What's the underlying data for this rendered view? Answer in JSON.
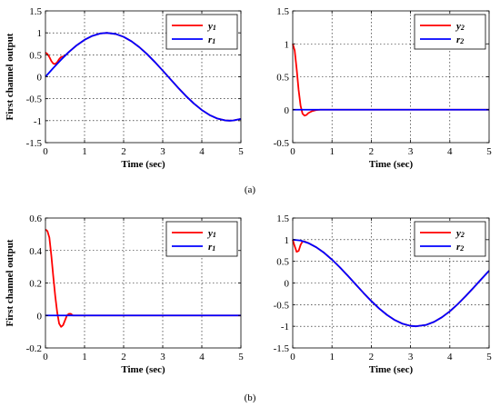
{
  "captions": [
    "(a)",
    "(b)"
  ],
  "colors": {
    "y": "#ff0000",
    "r": "#0000ff",
    "grid": "#000000",
    "axis": "#000000"
  },
  "chart_data": [
    {
      "type": "line",
      "xlabel": "Time (sec)",
      "ylabel": "First channel output",
      "xlim": [
        0,
        5
      ],
      "ylim": [
        -1.5,
        1.5
      ],
      "xticks": [
        "0",
        "1",
        "2",
        "3",
        "4",
        "5"
      ],
      "yticks": [
        "-1.5",
        "-1",
        "-0.5",
        "0",
        "0.5",
        "1",
        "1.5"
      ],
      "grid": true,
      "legend_position": "top-right",
      "series": [
        {
          "name": "y1",
          "label_base": "y",
          "label_sub": "1",
          "color": "#ff0000",
          "x": [
            0,
            0.05,
            0.1,
            0.15,
            0.2,
            0.25,
            0.3,
            0.35,
            0.4,
            0.45,
            0.5,
            0.6,
            0.8,
            1.0,
            1.2,
            1.4,
            1.571,
            1.8,
            2.0,
            2.2,
            2.4,
            2.6,
            2.8,
            3.0,
            3.2,
            3.4,
            3.6,
            3.8,
            4.0,
            4.2,
            4.4,
            4.6,
            4.712,
            4.8,
            5.0
          ],
          "y": [
            0.55,
            0.52,
            0.45,
            0.36,
            0.3,
            0.29,
            0.33,
            0.4,
            0.45,
            0.46,
            0.48,
            0.565,
            0.717,
            0.841,
            0.932,
            0.985,
            1.0,
            0.974,
            0.909,
            0.808,
            0.675,
            0.516,
            0.335,
            0.141,
            -0.058,
            -0.256,
            -0.443,
            -0.612,
            -0.757,
            -0.872,
            -0.952,
            -0.994,
            -1.0,
            -0.996,
            -0.959
          ]
        },
        {
          "name": "r1",
          "label_base": "r",
          "label_sub": "1",
          "color": "#0000ff",
          "x": [
            0,
            0.2,
            0.4,
            0.6,
            0.8,
            1.0,
            1.2,
            1.4,
            1.571,
            1.8,
            2.0,
            2.2,
            2.4,
            2.6,
            2.8,
            3.0,
            3.2,
            3.4,
            3.6,
            3.8,
            4.0,
            4.2,
            4.4,
            4.6,
            4.712,
            4.8,
            5.0
          ],
          "y": [
            0,
            0.199,
            0.389,
            0.565,
            0.717,
            0.841,
            0.932,
            0.985,
            1.0,
            0.974,
            0.909,
            0.808,
            0.675,
            0.516,
            0.335,
            0.141,
            -0.058,
            -0.256,
            -0.443,
            -0.612,
            -0.757,
            -0.872,
            -0.952,
            -0.994,
            -1.0,
            -0.996,
            -0.959
          ]
        }
      ]
    },
    {
      "type": "line",
      "xlabel": "Time (sec)",
      "ylabel": "",
      "xlim": [
        0,
        5
      ],
      "ylim": [
        -0.5,
        1.5
      ],
      "xticks": [
        "0",
        "1",
        "2",
        "3",
        "4",
        "5"
      ],
      "yticks": [
        "-0.5",
        "0",
        "0.5",
        "1",
        "1.5"
      ],
      "grid": true,
      "legend_position": "top-right",
      "series": [
        {
          "name": "y2",
          "label_base": "y",
          "label_sub": "2",
          "color": "#ff0000",
          "x": [
            0,
            0.05,
            0.1,
            0.15,
            0.2,
            0.25,
            0.3,
            0.35,
            0.4,
            0.5,
            0.6,
            0.7,
            0.8,
            5.0
          ],
          "y": [
            1.0,
            0.9,
            0.62,
            0.3,
            0.06,
            -0.06,
            -0.09,
            -0.08,
            -0.05,
            -0.02,
            -0.005,
            0,
            0,
            0
          ]
        },
        {
          "name": "r2",
          "label_base": "r",
          "label_sub": "2",
          "color": "#0000ff",
          "x": [
            0,
            5.0
          ],
          "y": [
            0,
            0
          ]
        }
      ]
    },
    {
      "type": "line",
      "xlabel": "Time (sec)",
      "ylabel": "First channel output",
      "xlim": [
        0,
        5
      ],
      "ylim": [
        -0.2,
        0.6
      ],
      "xticks": [
        "0",
        "1",
        "2",
        "3",
        "4",
        "5"
      ],
      "yticks": [
        "-0.2",
        "0",
        "0.2",
        "0.4",
        "0.6"
      ],
      "grid": true,
      "legend_position": "top-right",
      "series": [
        {
          "name": "y1",
          "label_base": "y",
          "label_sub": "1",
          "color": "#ff0000",
          "x": [
            0,
            0.05,
            0.1,
            0.15,
            0.2,
            0.25,
            0.3,
            0.35,
            0.4,
            0.45,
            0.5,
            0.55,
            0.6,
            0.65,
            0.7,
            5.0
          ],
          "y": [
            0.53,
            0.52,
            0.48,
            0.37,
            0.24,
            0.12,
            0.02,
            -0.05,
            -0.07,
            -0.06,
            -0.03,
            0,
            0.01,
            0.01,
            0,
            0
          ]
        },
        {
          "name": "r1",
          "label_base": "r",
          "label_sub": "1",
          "color": "#0000ff",
          "x": [
            0,
            5.0
          ],
          "y": [
            0,
            0
          ]
        }
      ]
    },
    {
      "type": "line",
      "xlabel": "Time (sec)",
      "ylabel": "",
      "xlim": [
        0,
        5
      ],
      "ylim": [
        -1.5,
        1.5
      ],
      "xticks": [
        "0",
        "1",
        "2",
        "3",
        "4",
        "5"
      ],
      "yticks": [
        "-1.5",
        "-1",
        "-0.5",
        "0",
        "0.5",
        "1",
        "1.5"
      ],
      "grid": true,
      "legend_position": "top-right",
      "series": [
        {
          "name": "y2",
          "label_base": "y",
          "label_sub": "2",
          "color": "#ff0000",
          "x": [
            0,
            0.05,
            0.1,
            0.15,
            0.2,
            0.25,
            0.3,
            0.4,
            0.6,
            0.8,
            1.0,
            1.2,
            1.4,
            1.6,
            1.8,
            2.0,
            2.2,
            2.4,
            2.6,
            2.8,
            3.0,
            3.1416,
            3.4,
            3.6,
            3.8,
            4.0,
            4.2,
            4.4,
            4.6,
            4.8,
            5.0
          ],
          "y": [
            1.0,
            0.85,
            0.72,
            0.74,
            0.88,
            0.96,
            0.96,
            0.921,
            0.825,
            0.697,
            0.54,
            0.362,
            0.17,
            -0.029,
            -0.227,
            -0.416,
            -0.589,
            -0.737,
            -0.857,
            -0.942,
            -0.99,
            -1.0,
            -0.967,
            -0.897,
            -0.791,
            -0.654,
            -0.49,
            -0.307,
            -0.112,
            0.087,
            0.284
          ]
        },
        {
          "name": "r2",
          "label_base": "r",
          "label_sub": "2",
          "color": "#0000ff",
          "x": [
            0,
            0.2,
            0.4,
            0.6,
            0.8,
            1.0,
            1.2,
            1.4,
            1.6,
            1.8,
            2.0,
            2.2,
            2.4,
            2.6,
            2.8,
            3.0,
            3.1416,
            3.4,
            3.6,
            3.8,
            4.0,
            4.2,
            4.4,
            4.6,
            4.8,
            5.0
          ],
          "y": [
            1.0,
            0.98,
            0.921,
            0.825,
            0.697,
            0.54,
            0.362,
            0.17,
            -0.029,
            -0.227,
            -0.416,
            -0.589,
            -0.737,
            -0.857,
            -0.942,
            -0.99,
            -1.0,
            -0.967,
            -0.897,
            -0.791,
            -0.654,
            -0.49,
            -0.307,
            -0.112,
            0.087,
            0.284
          ]
        }
      ]
    }
  ]
}
